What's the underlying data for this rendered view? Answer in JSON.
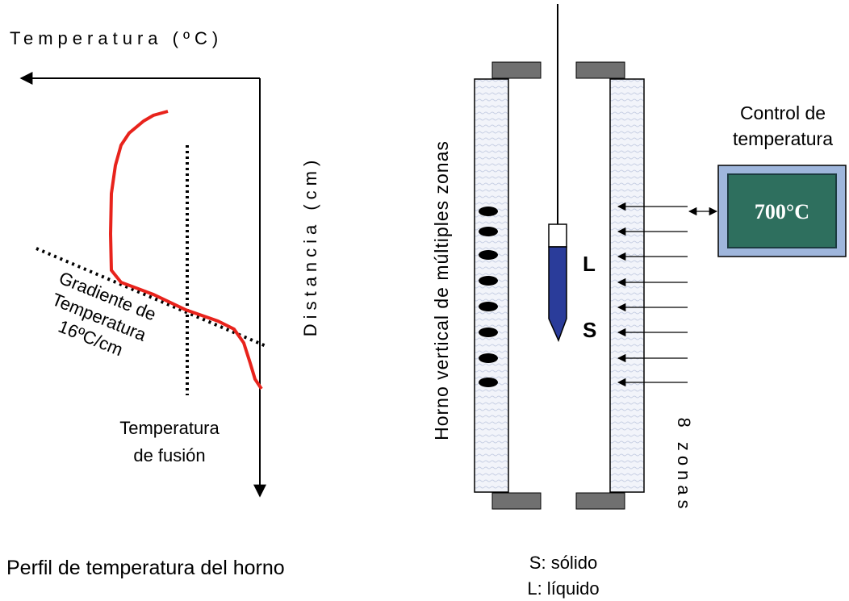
{
  "profile": {
    "axis_x_label": "Temperatura (ºC)",
    "axis_y_label": "Distancia (cm)",
    "gradient_label": [
      "Gradiente de",
      "Temperatura",
      "16ºC/cm"
    ],
    "melting_label": [
      "Temperatura",
      "de fusión"
    ],
    "caption": "Perfil de temperatura del horno"
  },
  "furnace": {
    "side_label": "Horno vertical de múltiples zonas",
    "liquid_marker": "L",
    "solid_marker": "S",
    "zones_label": "8 zonas",
    "control_title": [
      "Control de",
      "temperatura"
    ],
    "control_display": "700°C",
    "legend": [
      "S: sólido",
      "L: líquido"
    ]
  }
}
